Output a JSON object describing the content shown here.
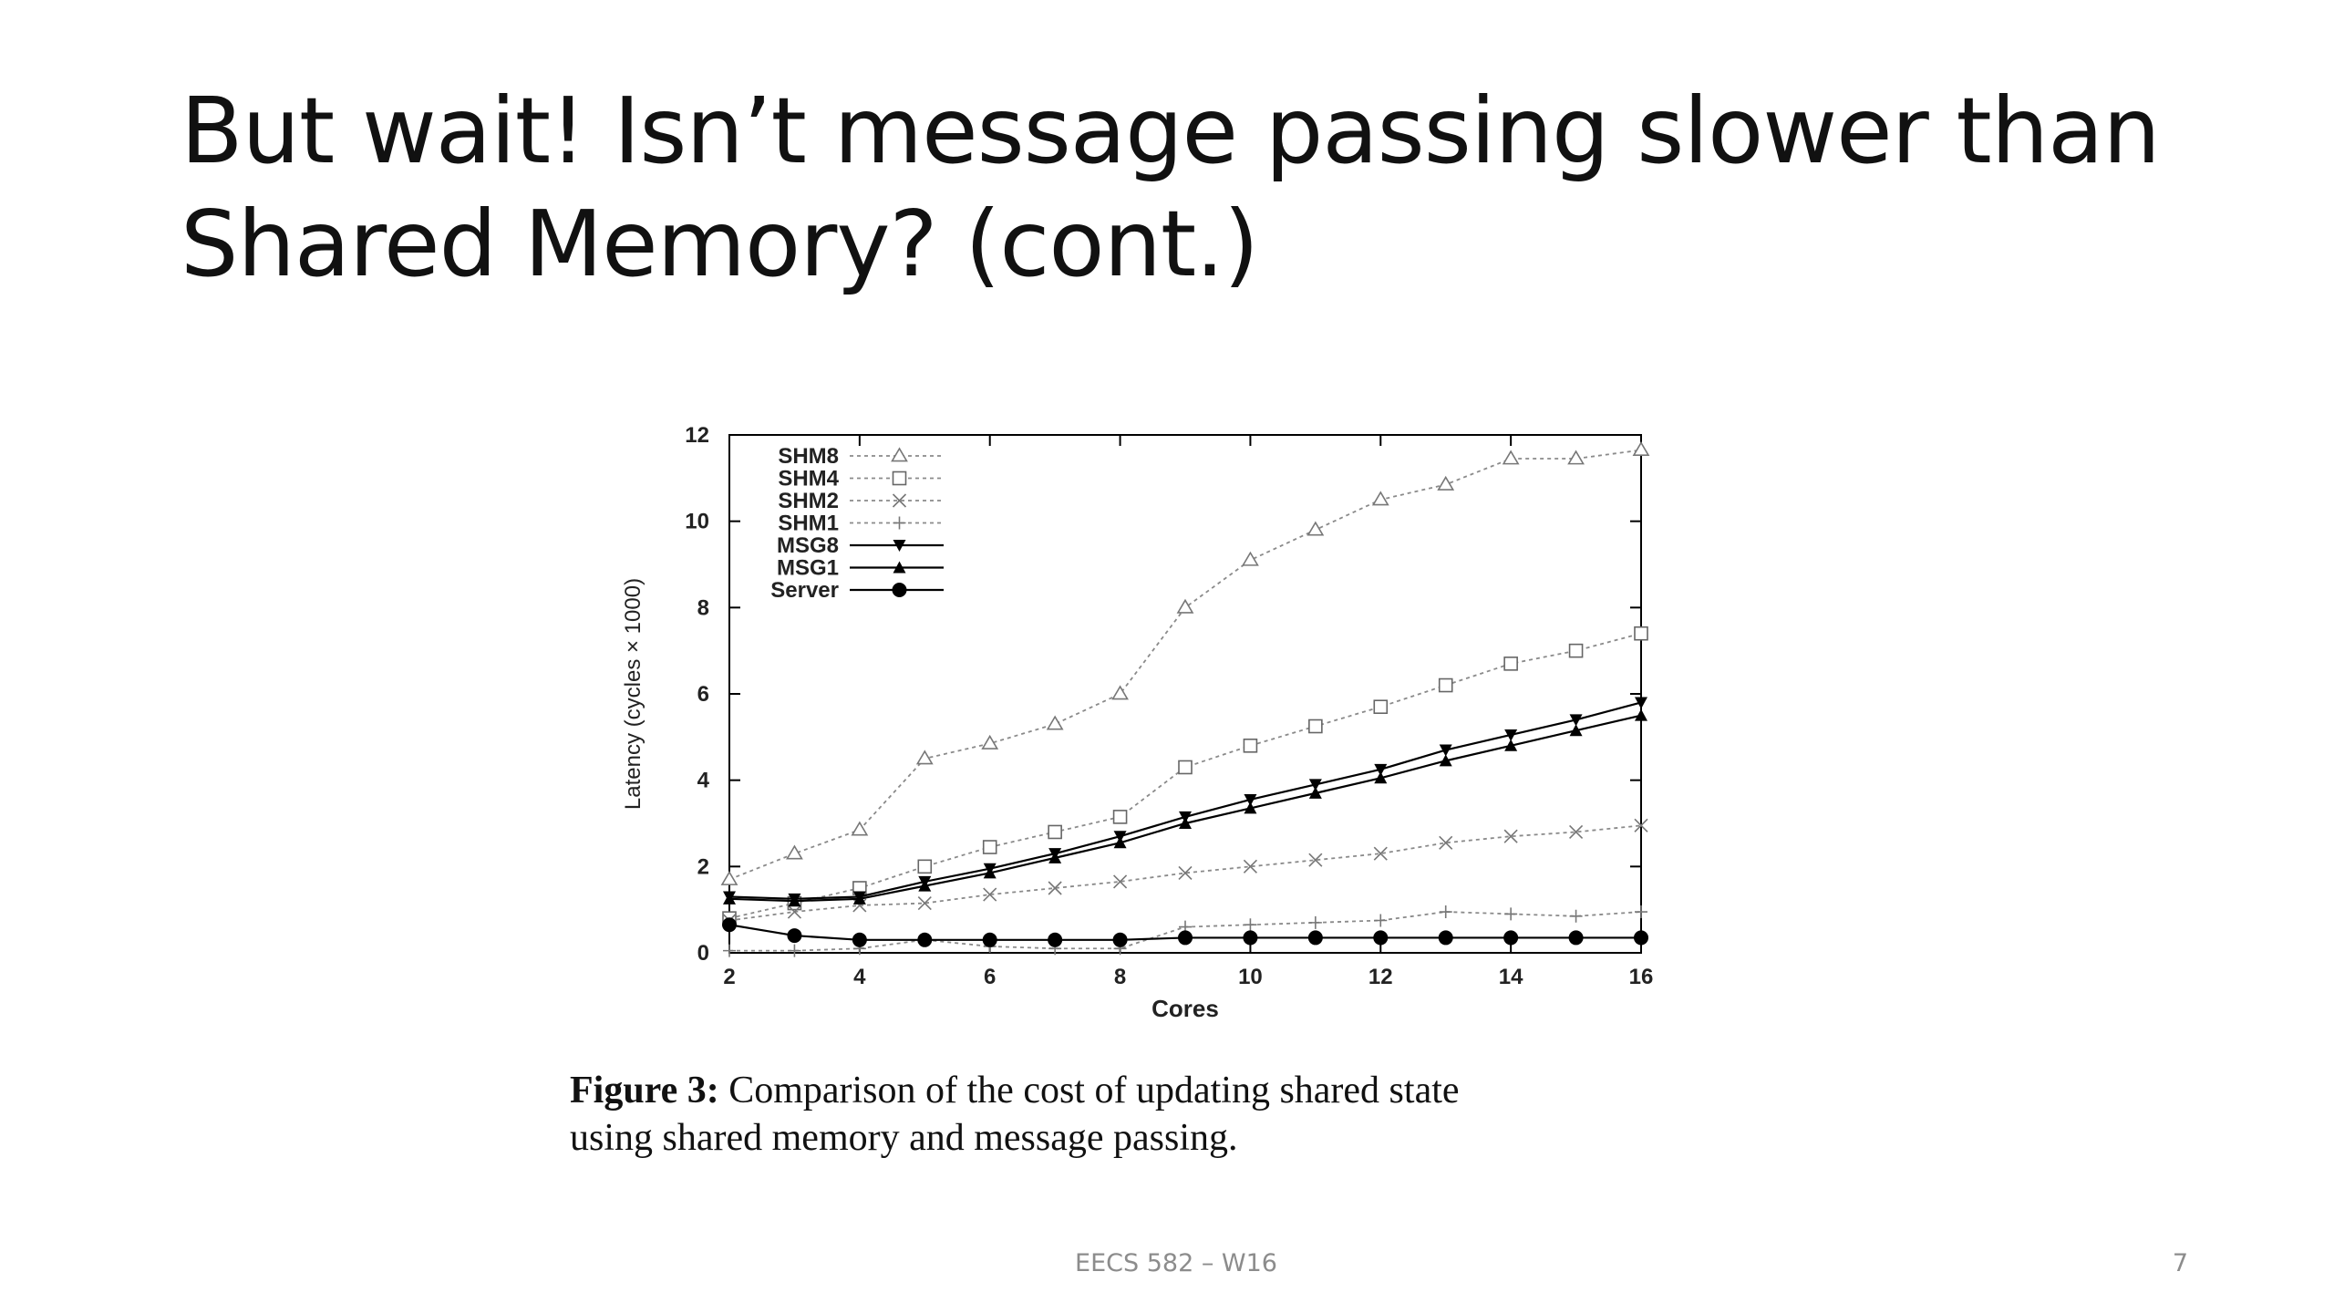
{
  "slide": {
    "title_lines": [
      "But wait! Isn’t message passing slower than",
      "Shared Memory? (cont.)"
    ],
    "caption": {
      "label": "Figure 3:",
      "lines": [
        " Comparison of the cost of updating shared state",
        "using shared memory and message passing."
      ]
    },
    "footer": "EECS 582 – W16",
    "page_number": "7"
  },
  "chart_data": {
    "type": "line",
    "title": "",
    "xlabel": "Cores",
    "ylabel": "Latency (cycles × 1000)",
    "xlim": [
      2,
      16
    ],
    "ylim": [
      0,
      12
    ],
    "xticks": [
      2,
      4,
      6,
      8,
      10,
      12,
      14,
      16
    ],
    "yticks": [
      0,
      2,
      4,
      6,
      8,
      10,
      12
    ],
    "x": [
      2,
      3,
      4,
      5,
      6,
      7,
      8,
      9,
      10,
      11,
      12,
      13,
      14,
      15,
      16
    ],
    "legend_position": "top-left",
    "grid": false,
    "series": [
      {
        "name": "SHM8",
        "marker": "triangle-open",
        "dash": "dotted",
        "values": [
          1.7,
          2.3,
          2.85,
          4.5,
          4.85,
          5.3,
          6.0,
          8.0,
          9.1,
          9.8,
          10.5,
          10.85,
          11.45,
          11.45,
          11.65
        ]
      },
      {
        "name": "SHM4",
        "marker": "square-open",
        "dash": "dotted",
        "values": [
          0.8,
          1.15,
          1.5,
          2.0,
          2.45,
          2.8,
          3.15,
          4.3,
          4.8,
          5.25,
          5.7,
          6.2,
          6.7,
          7.0,
          7.4
        ]
      },
      {
        "name": "SHM2",
        "marker": "x",
        "dash": "dotted",
        "values": [
          0.75,
          0.95,
          1.1,
          1.15,
          1.35,
          1.5,
          1.65,
          1.85,
          2.0,
          2.15,
          2.3,
          2.55,
          2.7,
          2.8,
          2.95
        ]
      },
      {
        "name": "SHM1",
        "marker": "plus",
        "dash": "dotted",
        "values": [
          0.05,
          0.05,
          0.1,
          0.3,
          0.15,
          0.1,
          0.1,
          0.6,
          0.65,
          0.7,
          0.75,
          0.95,
          0.9,
          0.85,
          0.95
        ]
      },
      {
        "name": "MSG8",
        "marker": "triangle-down-filled",
        "dash": "solid",
        "values": [
          1.3,
          1.25,
          1.3,
          1.65,
          1.95,
          2.3,
          2.7,
          3.15,
          3.55,
          3.9,
          4.25,
          4.7,
          5.05,
          5.4,
          5.8
        ]
      },
      {
        "name": "MSG1",
        "marker": "triangle-up-filled",
        "dash": "solid",
        "values": [
          1.25,
          1.2,
          1.25,
          1.55,
          1.85,
          2.2,
          2.55,
          3.0,
          3.35,
          3.7,
          4.05,
          4.45,
          4.8,
          5.15,
          5.5
        ]
      },
      {
        "name": "Server",
        "marker": "circle-filled",
        "dash": "solid",
        "values": [
          0.65,
          0.4,
          0.3,
          0.3,
          0.3,
          0.3,
          0.3,
          0.35,
          0.35,
          0.35,
          0.35,
          0.35,
          0.35,
          0.35,
          0.35
        ]
      }
    ]
  }
}
